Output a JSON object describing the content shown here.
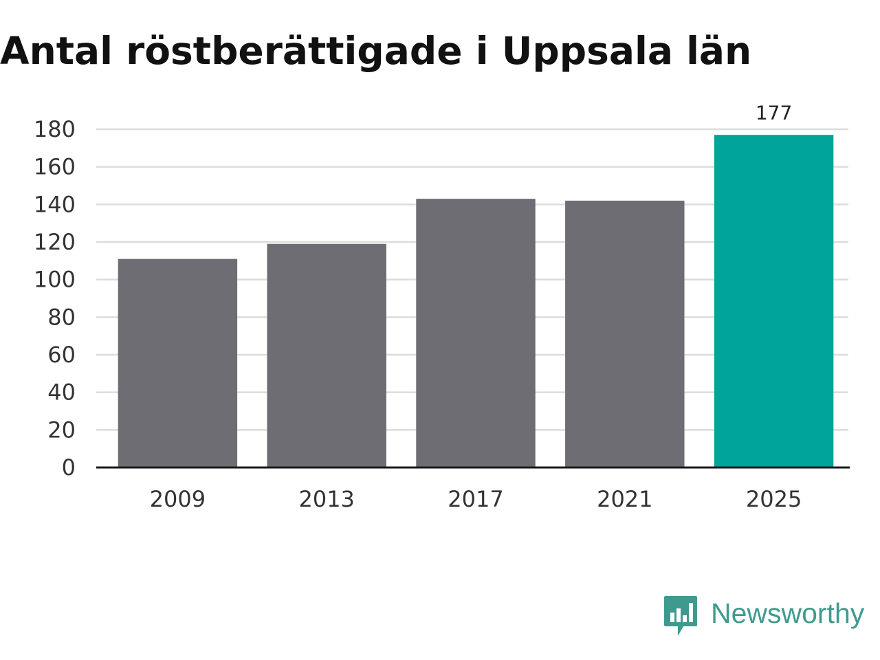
{
  "chart_data": {
    "type": "bar",
    "title": "Antal röstberättigade i Uppsala län",
    "categories": [
      "2009",
      "2013",
      "2017",
      "2021",
      "2025"
    ],
    "values": [
      111,
      119,
      143,
      142,
      177
    ],
    "data_labels": {
      "4": "177"
    },
    "ylim": [
      0,
      180
    ],
    "yticks": [
      "0",
      "20",
      "40",
      "60",
      "80",
      "100",
      "120",
      "140",
      "160",
      "180"
    ],
    "grid": true,
    "xlabel": "",
    "ylabel": "",
    "colors": {
      "bar": "#6e6d73",
      "highlight": "#00a498",
      "grid": "#dcdcdc",
      "axis": "#1a1a1a",
      "text": "#333333"
    },
    "highlight_index": 4
  },
  "brand": {
    "name": "Newsworthy",
    "icon": "newsworthy-logo-icon",
    "color": "#3f9a8e"
  }
}
